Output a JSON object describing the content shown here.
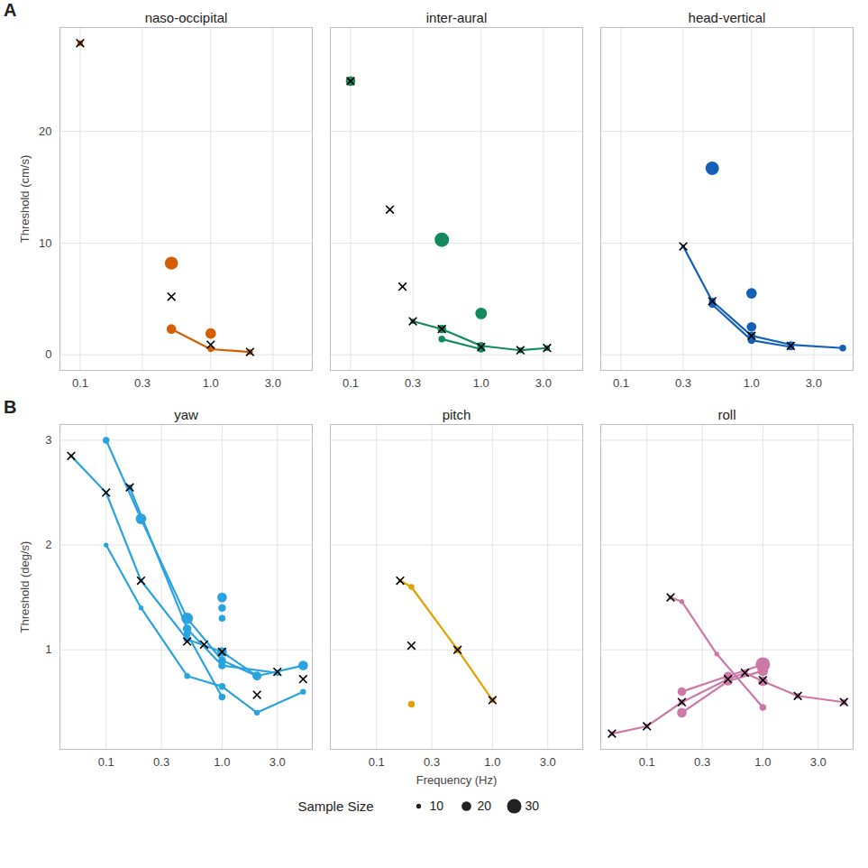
{
  "chart_data": [
    {
      "type": "scatter",
      "panel": "A",
      "title": "naso-occipital",
      "ylabel": "Threshold (cm/s)",
      "log": "x",
      "grid": true,
      "xlim": [
        0.07,
        6
      ],
      "xticks": [
        0.1,
        0.3,
        {
          "value": 1,
          "label": "1.0"
        },
        {
          "value": 3,
          "label": "3.0"
        }
      ],
      "ylim": [
        -1.4,
        29.3
      ],
      "yticks": [
        0,
        10,
        20
      ],
      "series": [
        {
          "type": "line",
          "marker": "circle",
          "color": "#D55E00",
          "x": [
            0.5,
            1,
            2
          ],
          "values": [
            2.3,
            0.5,
            0.25
          ],
          "sample_size": [
            20,
            12,
            12
          ]
        },
        {
          "type": "scatter",
          "marker": "circle",
          "color": "#D55E00",
          "x": [
            0.1,
            0.5,
            1
          ],
          "values": [
            27.9,
            8.2,
            1.9
          ],
          "sample_size": [
            12,
            27,
            22
          ]
        },
        {
          "type": "scatter",
          "marker": "x",
          "color": "#000000",
          "x": [
            0.1,
            0.5,
            1,
            2
          ],
          "values": [
            27.9,
            5.2,
            0.9,
            0.25
          ]
        }
      ]
    },
    {
      "type": "scatter",
      "title": "inter-aural",
      "log": "x",
      "grid": true,
      "xlim": [
        0.07,
        6
      ],
      "xticks": [
        0.1,
        0.3,
        {
          "value": 1,
          "label": "1.0"
        },
        {
          "value": 3,
          "label": "3.0"
        }
      ],
      "ylim": [
        -1.4,
        29.3
      ],
      "yticks": [
        0,
        10,
        20
      ],
      "series": [
        {
          "type": "line",
          "marker": "circle",
          "color": "#138A5E",
          "x": [
            0.3,
            0.5,
            1,
            2,
            3.2
          ],
          "values": [
            3.0,
            2.3,
            0.8,
            0.4,
            0.6
          ],
          "sample_size": [
            10,
            18,
            16,
            12,
            12
          ]
        },
        {
          "type": "line",
          "marker": "circle",
          "color": "#138A5E",
          "x": [
            0.5,
            1
          ],
          "values": [
            1.4,
            0.5
          ],
          "sample_size": [
            14,
            14
          ]
        },
        {
          "type": "scatter",
          "marker": "circle",
          "color": "#138A5E",
          "x": [
            0.1,
            0.2,
            0.25,
            0.5,
            1
          ],
          "values": [
            24.5,
            13.0,
            6.1,
            10.3,
            3.7
          ],
          "sample_size": [
            20,
            6,
            4,
            30,
            24
          ]
        },
        {
          "type": "scatter",
          "marker": "x",
          "color": "#000000",
          "x": [
            0.1,
            0.2,
            0.25,
            0.3,
            0.5,
            1,
            2,
            3.2
          ],
          "values": [
            24.5,
            13.0,
            6.1,
            3.0,
            2.3,
            0.7,
            0.4,
            0.6
          ]
        }
      ]
    },
    {
      "type": "scatter",
      "title": "head-vertical",
      "log": "x",
      "grid": true,
      "xlim": [
        0.07,
        6
      ],
      "xticks": [
        0.1,
        0.3,
        {
          "value": 1,
          "label": "1.0"
        },
        {
          "value": 3,
          "label": "3.0"
        }
      ],
      "ylim": [
        -1.4,
        29.3
      ],
      "yticks": [
        0,
        10,
        20
      ],
      "series": [
        {
          "type": "line",
          "marker": "circle",
          "color": "#1460B8",
          "x": [
            0.3,
            0.5,
            1,
            2,
            5
          ],
          "values": [
            9.7,
            4.8,
            1.7,
            0.9,
            0.6
          ],
          "sample_size": [
            8,
            14,
            16,
            14,
            14
          ]
        },
        {
          "type": "line",
          "marker": "circle",
          "color": "#1460B8",
          "x": [
            0.5,
            1,
            2
          ],
          "values": [
            4.5,
            1.3,
            0.7
          ],
          "sample_size": [
            14,
            16,
            14
          ]
        },
        {
          "type": "scatter",
          "marker": "circle",
          "color": "#1460B8",
          "x": [
            0.5,
            1,
            1
          ],
          "values": [
            16.7,
            5.5,
            2.5
          ],
          "sample_size": [
            28,
            22,
            20
          ]
        },
        {
          "type": "scatter",
          "marker": "x",
          "color": "#000000",
          "x": [
            0.3,
            0.5,
            1,
            2
          ],
          "values": [
            9.7,
            4.8,
            1.7,
            0.8
          ]
        }
      ]
    },
    {
      "type": "scatter",
      "panel": "B",
      "title": "yaw",
      "ylabel": "Threshold (deg/s)",
      "log": "x",
      "grid": true,
      "xlim": [
        0.04,
        6
      ],
      "xticks": [
        0.1,
        0.3,
        {
          "value": 1,
          "label": "1.0"
        },
        {
          "value": 3,
          "label": "3.0"
        }
      ],
      "ylim": [
        0.05,
        3.15
      ],
      "yticks": [
        1,
        2,
        3
      ],
      "series": [
        {
          "type": "line",
          "marker": "circle",
          "color": "#29A3DF",
          "x": [
            0.05,
            0.1,
            0.2,
            0.5,
            1,
            2,
            5
          ],
          "values": [
            2.85,
            2.5,
            1.66,
            1.1,
            0.98,
            0.75,
            0.85
          ],
          "sample_size": [
            8,
            8,
            8,
            14,
            20,
            18,
            20
          ]
        },
        {
          "type": "line",
          "marker": "circle",
          "color": "#29A3DF",
          "x": [
            0.1,
            0.2,
            0.5,
            1,
            2
          ],
          "values": [
            3.0,
            2.25,
            1.3,
            0.9,
            0.75
          ],
          "sample_size": [
            14,
            22,
            24,
            16,
            18
          ]
        },
        {
          "type": "line",
          "marker": "circle",
          "color": "#29A3DF",
          "x": [
            0.16,
            0.5,
            1,
            3
          ],
          "values": [
            2.55,
            1.2,
            0.85,
            0.78
          ],
          "sample_size": [
            12,
            18,
            16,
            12
          ]
        },
        {
          "type": "line",
          "marker": "circle",
          "color": "#29A3DF",
          "x": [
            0.1,
            0.2,
            0.5,
            1,
            2,
            5
          ],
          "values": [
            2.0,
            1.4,
            0.75,
            0.65,
            0.4,
            0.6
          ],
          "sample_size": [
            10,
            10,
            12,
            14,
            12,
            12
          ]
        },
        {
          "type": "line",
          "marker": "circle",
          "color": "#29A3DF",
          "x": [
            0.5,
            1
          ],
          "values": [
            1.15,
            0.55
          ],
          "sample_size": [
            14,
            14
          ]
        },
        {
          "type": "scatter",
          "marker": "circle",
          "color": "#29A3DF",
          "x": [
            1,
            1,
            1
          ],
          "values": [
            1.5,
            1.4,
            1.3
          ],
          "sample_size": [
            20,
            16,
            14
          ]
        },
        {
          "type": "scatter",
          "marker": "x",
          "color": "#000000",
          "x": [
            0.05,
            0.1,
            0.16,
            0.2,
            0.5,
            0.7,
            1,
            2,
            3,
            5
          ],
          "values": [
            2.85,
            2.5,
            2.55,
            1.66,
            1.08,
            1.05,
            0.98,
            0.57,
            0.79,
            0.72
          ]
        }
      ]
    },
    {
      "type": "scatter",
      "title": "pitch",
      "xlabel": "Frequency (Hz)",
      "log": "x",
      "grid": true,
      "xlim": [
        0.04,
        6
      ],
      "xticks": [
        0.1,
        0.3,
        {
          "value": 1,
          "label": "1.0"
        },
        {
          "value": 3,
          "label": "3.0"
        }
      ],
      "ylim": [
        0.05,
        3.15
      ],
      "yticks": [
        1,
        2,
        3
      ],
      "series": [
        {
          "type": "line",
          "marker": "circle",
          "color": "#E69F00",
          "x": [
            0.16,
            0.2,
            0.5,
            1
          ],
          "values": [
            1.66,
            1.6,
            1.0,
            0.52
          ],
          "sample_size": [
            8,
            12,
            14,
            12
          ]
        },
        {
          "type": "scatter",
          "marker": "circle",
          "color": "#E69F00",
          "x": [
            0.2
          ],
          "values": [
            0.48
          ],
          "sample_size": [
            14
          ]
        },
        {
          "type": "scatter",
          "marker": "x",
          "color": "#000000",
          "x": [
            0.16,
            0.2,
            0.5,
            1
          ],
          "values": [
            1.66,
            1.04,
            1.0,
            0.52
          ]
        }
      ]
    },
    {
      "type": "scatter",
      "title": "roll",
      "log": "x",
      "grid": true,
      "xlim": [
        0.04,
        6
      ],
      "xticks": [
        0.1,
        0.3,
        {
          "value": 1,
          "label": "1.0"
        },
        {
          "value": 3,
          "label": "3.0"
        }
      ],
      "ylim": [
        0.05,
        3.15
      ],
      "yticks": [
        1,
        2,
        3
      ],
      "series": [
        {
          "type": "line",
          "marker": "circle",
          "color": "#CC79A7",
          "x": [
            0.05,
            0.1,
            0.2,
            0.5,
            0.7,
            1,
            2,
            5
          ],
          "values": [
            0.2,
            0.27,
            0.5,
            0.72,
            0.78,
            0.7,
            0.56,
            0.5
          ],
          "sample_size": [
            10,
            10,
            12,
            16,
            12,
            20,
            12,
            12
          ]
        },
        {
          "type": "line",
          "marker": "circle",
          "color": "#CC79A7",
          "x": [
            0.16,
            0.2,
            0.4,
            1
          ],
          "values": [
            1.5,
            1.46,
            0.96,
            0.45
          ],
          "sample_size": [
            10,
            10,
            10,
            14
          ]
        },
        {
          "type": "line",
          "marker": "circle",
          "color": "#CC79A7",
          "x": [
            0.2,
            0.5,
            1
          ],
          "values": [
            0.6,
            0.75,
            0.86
          ],
          "sample_size": [
            18,
            18,
            30
          ]
        },
        {
          "type": "line",
          "marker": "circle",
          "color": "#CC79A7",
          "x": [
            0.2,
            0.5,
            1
          ],
          "values": [
            0.4,
            0.7,
            0.8
          ],
          "sample_size": [
            20,
            18,
            22
          ]
        },
        {
          "type": "scatter",
          "marker": "x",
          "color": "#000000",
          "x": [
            0.05,
            0.1,
            0.16,
            0.2,
            0.5,
            0.7,
            1,
            2,
            5
          ],
          "values": [
            0.2,
            0.27,
            1.5,
            0.5,
            0.72,
            0.78,
            0.71,
            0.56,
            0.5
          ]
        }
      ]
    }
  ],
  "size_legend": {
    "title": "Sample Size",
    "values": [
      10,
      20,
      30
    ],
    "legend": "bottom"
  }
}
